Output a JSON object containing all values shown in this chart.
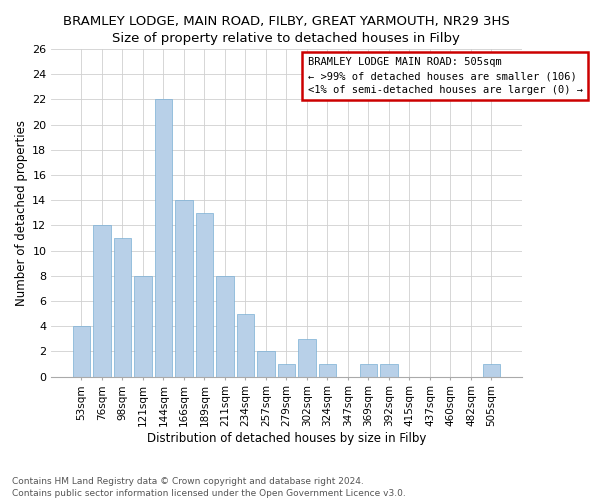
{
  "title": "BRAMLEY LODGE, MAIN ROAD, FILBY, GREAT YARMOUTH, NR29 3HS",
  "subtitle": "Size of property relative to detached houses in Filby",
  "xlabel": "Distribution of detached houses by size in Filby",
  "ylabel": "Number of detached properties",
  "categories": [
    "53sqm",
    "76sqm",
    "98sqm",
    "121sqm",
    "144sqm",
    "166sqm",
    "189sqm",
    "211sqm",
    "234sqm",
    "257sqm",
    "279sqm",
    "302sqm",
    "324sqm",
    "347sqm",
    "369sqm",
    "392sqm",
    "415sqm",
    "437sqm",
    "460sqm",
    "482sqm",
    "505sqm"
  ],
  "values": [
    4,
    12,
    11,
    8,
    22,
    14,
    13,
    8,
    5,
    2,
    1,
    3,
    1,
    0,
    1,
    1,
    0,
    0,
    0,
    0,
    1
  ],
  "bar_color": "#b8d0e8",
  "bar_edge_color": "#7aafd4",
  "ylim": [
    0,
    26
  ],
  "yticks": [
    0,
    2,
    4,
    6,
    8,
    10,
    12,
    14,
    16,
    18,
    20,
    22,
    24,
    26
  ],
  "annotation_box_title": "BRAMLEY LODGE MAIN ROAD: 505sqm",
  "annotation_line1": "← >99% of detached houses are smaller (106)",
  "annotation_line2": "<1% of semi-detached houses are larger (0) →",
  "annotation_box_color": "#ffffff",
  "annotation_box_edge_color": "#cc0000",
  "footer_line1": "Contains HM Land Registry data © Crown copyright and database right 2024.",
  "footer_line2": "Contains public sector information licensed under the Open Government Licence v3.0.",
  "title_fontsize": 9.5,
  "subtitle_fontsize": 9,
  "ylabel_fontsize": 8.5,
  "xlabel_fontsize": 8.5,
  "tick_fontsize": 8,
  "xtick_fontsize": 7.5,
  "annotation_fontsize": 7.5,
  "footer_fontsize": 6.5
}
